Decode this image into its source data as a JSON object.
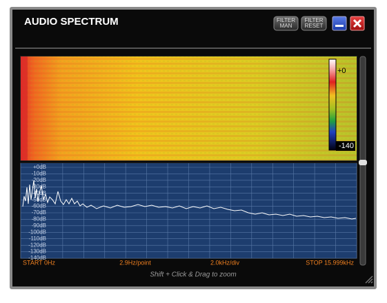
{
  "window": {
    "title": "AUDIO SPECTRUM",
    "buttons": {
      "filter_man": [
        "FILTER",
        "MAN"
      ],
      "filter_reset": [
        "FILTER",
        "RESET"
      ]
    }
  },
  "spectrogram": {
    "scale_top": "+0",
    "scale_bottom": "-140"
  },
  "spectrum": {
    "db_labels": [
      "+0dB",
      "-10dB",
      "-20dB",
      "-30dB",
      "-40dB",
      "-50dB",
      "-60dB",
      "-70dB",
      "-80dB",
      "-90dB",
      "-100dB",
      "-110dB",
      "-120dB",
      "-130dB",
      "-140dB"
    ],
    "footer": {
      "start": "START 0Hz",
      "resolution": "2.9Hz/point",
      "division": "2.0kHz/div",
      "stop": "STOP 15.999kHz"
    },
    "hint": "Shift + Click & Drag to zoom"
  }
}
